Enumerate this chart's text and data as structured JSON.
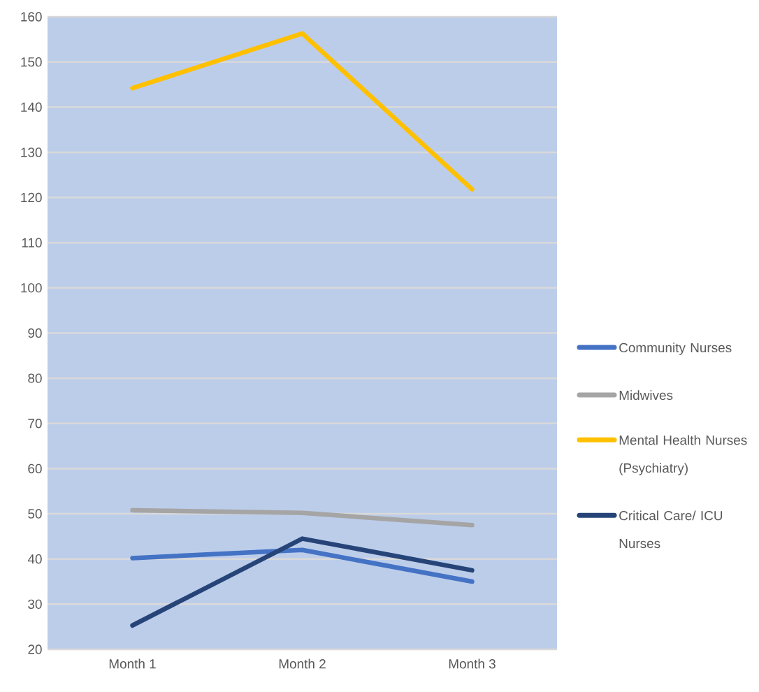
{
  "chart_data": {
    "type": "line",
    "categories": [
      "Month 1",
      "Month 2",
      "Month 3"
    ],
    "series": [
      {
        "name": "Community Nurses",
        "color": "#4472c4",
        "values": [
          40.2,
          42,
          35
        ]
      },
      {
        "name": "Midwives",
        "color": "#a5a5a5",
        "values": [
          50.8,
          50.2,
          47.5
        ]
      },
      {
        "name": "Mental Health Nurses (Psychiatry)",
        "color": "#ffc000",
        "values": [
          144.2,
          156.3,
          121.8
        ]
      },
      {
        "name": "Critical Care/ ICU Nurses",
        "color": "#264478",
        "values": [
          25.3,
          44.5,
          37.5
        ]
      }
    ],
    "ylim": [
      20,
      160
    ],
    "yticks": [
      20,
      30,
      40,
      50,
      60,
      70,
      80,
      90,
      100,
      110,
      120,
      130,
      140,
      150,
      160
    ],
    "grid": "y",
    "legend": "right",
    "marker": "none",
    "line_style": "solid"
  }
}
